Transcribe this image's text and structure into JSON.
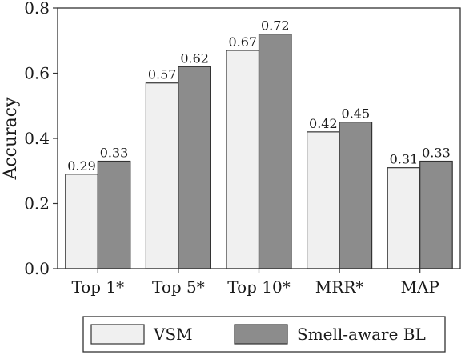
{
  "chart_data": {
    "type": "bar",
    "categories": [
      "Top 1*",
      "Top 5*",
      "Top 10*",
      "MRR*",
      "MAP"
    ],
    "series": [
      {
        "name": "VSM",
        "values": [
          0.29,
          0.57,
          0.67,
          0.42,
          0.31
        ],
        "labels": [
          "0.29",
          "0.57",
          "0.67",
          "0.42",
          "0.31"
        ],
        "color": "#f0f0f0"
      },
      {
        "name": "Smell-aware BL",
        "values": [
          0.33,
          0.62,
          0.72,
          0.45,
          0.33
        ],
        "labels": [
          "0.33",
          "0.62",
          "0.72",
          "0.45",
          "0.33"
        ],
        "color": "#8c8c8c"
      }
    ],
    "title": "",
    "xlabel": "",
    "ylabel": "Accuracy",
    "ylim": [
      0,
      0.8
    ],
    "yticks": [
      0.0,
      0.2,
      0.4,
      0.6,
      0.8
    ],
    "ytick_labels": [
      "0.0",
      "0.2",
      "0.4",
      "0.6",
      "0.8"
    ],
    "grid": false,
    "legend_position": "bottom",
    "frame_color": "#333333"
  }
}
